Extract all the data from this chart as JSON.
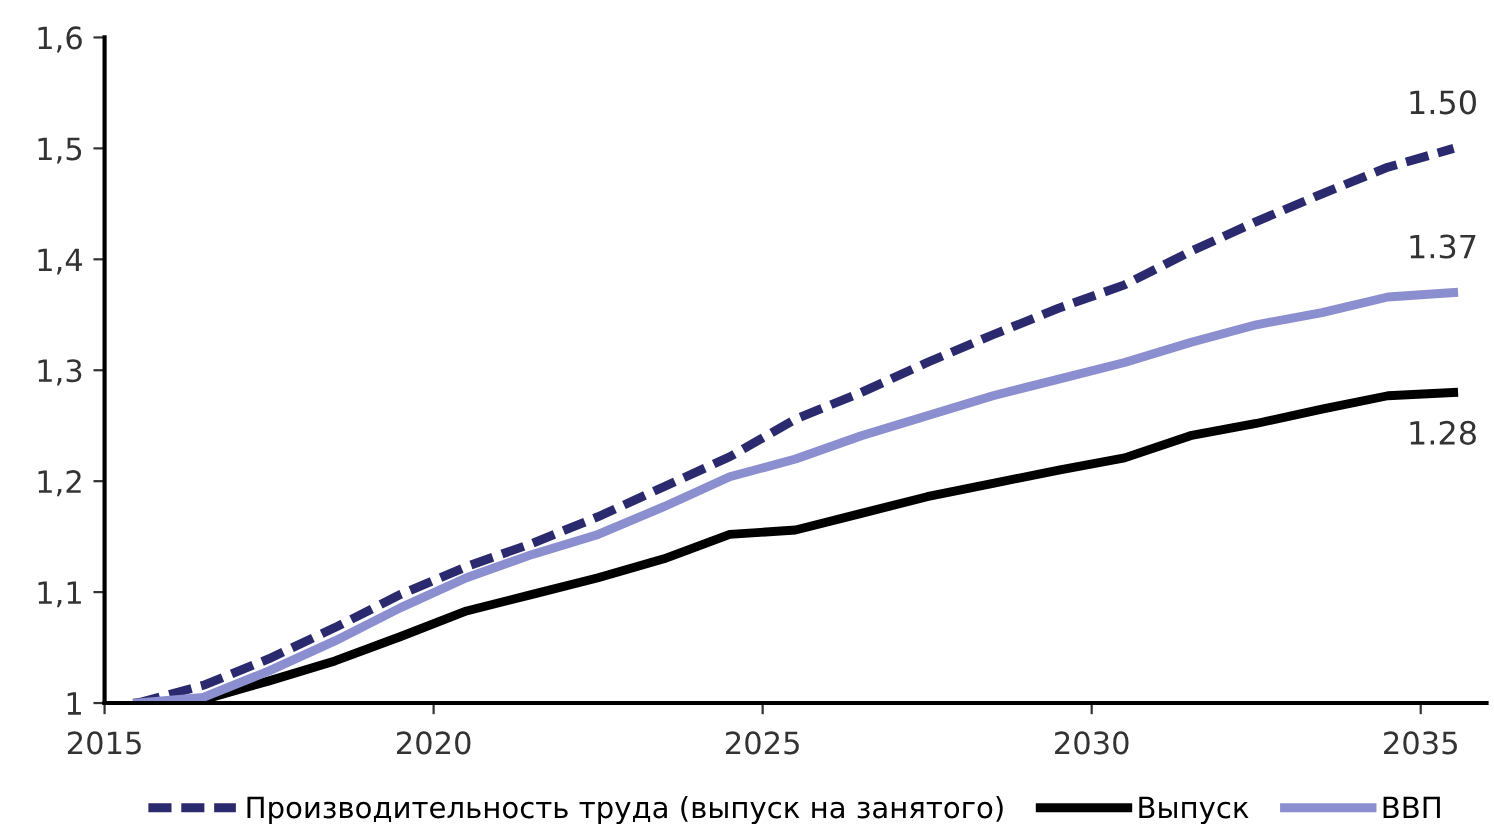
{
  "chart_data": {
    "type": "line",
    "x": [
      2015.5,
      2016.5,
      2017.5,
      2018.5,
      2019.5,
      2020.5,
      2021.5,
      2022.5,
      2023.5,
      2024.5,
      2025.5,
      2026.5,
      2027.5,
      2028.5,
      2029.5,
      2030.5,
      2031.5,
      2032.5,
      2033.5,
      2034.5,
      2035.5
    ],
    "series": [
      {
        "name": "Производительность труда (выпуск на занятого)",
        "color": "#2b2a6e",
        "line_style": "dashed",
        "values": [
          1.0,
          1.016,
          1.04,
          1.068,
          1.098,
          1.123,
          1.144,
          1.168,
          1.195,
          1.222,
          1.256,
          1.28,
          1.307,
          1.332,
          1.356,
          1.377,
          1.407,
          1.434,
          1.459,
          1.483,
          1.5
        ],
        "value_labels": [
          null,
          null,
          null,
          null,
          null,
          null,
          null,
          null,
          null,
          null,
          null,
          null,
          null,
          null,
          null,
          null,
          null,
          null,
          null,
          null,
          "1.50"
        ]
      },
      {
        "name": "Выпуск",
        "color": "#000000",
        "line_style": "solid",
        "values": [
          1.0,
          1.003,
          1.02,
          1.038,
          1.06,
          1.083,
          1.098,
          1.113,
          1.13,
          1.152,
          1.156,
          1.171,
          1.186,
          1.198,
          1.21,
          1.221,
          1.241,
          1.252,
          1.265,
          1.277,
          1.28
        ],
        "value_labels": [
          null,
          null,
          null,
          null,
          null,
          null,
          null,
          null,
          null,
          null,
          null,
          null,
          null,
          null,
          null,
          null,
          null,
          null,
          null,
          null,
          "1.28"
        ]
      },
      {
        "name": "ВВП",
        "color": "#8b8fcf",
        "line_style": "solid",
        "values": [
          1.0,
          1.005,
          1.029,
          1.056,
          1.086,
          1.113,
          1.134,
          1.152,
          1.177,
          1.204,
          1.22,
          1.241,
          1.259,
          1.277,
          1.292,
          1.307,
          1.325,
          1.341,
          1.352,
          1.366,
          1.37
        ],
        "value_labels": [
          null,
          null,
          null,
          null,
          null,
          null,
          null,
          null,
          null,
          null,
          null,
          null,
          null,
          null,
          null,
          null,
          null,
          null,
          null,
          null,
          "1.37"
        ]
      }
    ],
    "xlim": [
      2015,
      2036
    ],
    "xticks": [
      2015,
      2020,
      2025,
      2030,
      2035
    ],
    "ylim": [
      1,
      1.6
    ],
    "yticks": [
      {
        "value": 1,
        "label": "1"
      },
      {
        "value": 1.1,
        "label": "1,1"
      },
      {
        "value": 1.2,
        "label": "1,2"
      },
      {
        "value": 1.3,
        "label": "1,3"
      },
      {
        "value": 1.4,
        "label": "1,4"
      },
      {
        "value": 1.5,
        "label": "1,5"
      },
      {
        "value": 1.6,
        "label": "1,6"
      }
    ],
    "grid": false,
    "legend": "bottom",
    "marker": "none"
  }
}
